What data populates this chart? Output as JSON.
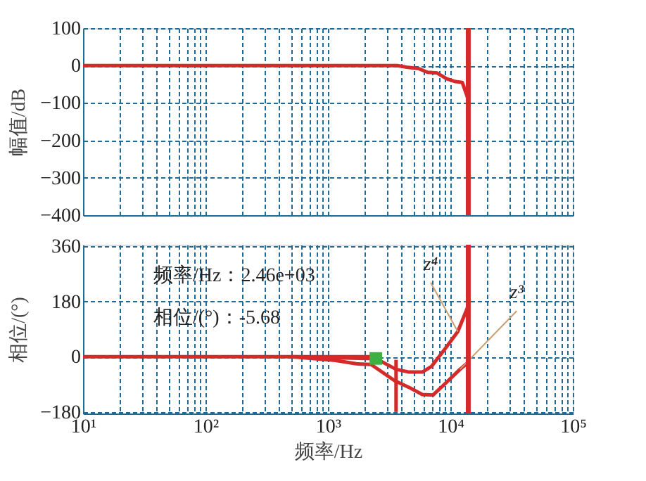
{
  "chart_data": [
    {
      "type": "line",
      "ylabel": "幅值/dB",
      "log": "x",
      "grid": true,
      "line_style": "solid",
      "tick_labels": "y",
      "xlim": [
        10,
        100000
      ],
      "ylim": [
        -400,
        100
      ],
      "yticks": [
        -400,
        -300,
        -200,
        -100,
        0,
        100
      ],
      "xticks": [
        10,
        20,
        30,
        40,
        50,
        60,
        70,
        80,
        90,
        100,
        200,
        300,
        400,
        500,
        600,
        700,
        800,
        900,
        1000,
        2000,
        3000,
        4000,
        5000,
        6000,
        7000,
        8000,
        9000,
        10000,
        20000,
        30000,
        40000,
        50000,
        60000,
        70000,
        80000,
        90000,
        100000
      ],
      "series": [
        {
          "color": "#d42a2a",
          "x": [
            10,
            3700,
            4500,
            5500,
            6500,
            7800,
            9300,
            11000,
            12500,
            13800,
            14000
          ],
          "values": [
            0,
            0,
            -5,
            -8,
            -18,
            -20,
            -35,
            -43,
            -45,
            -85,
            -100
          ]
        }
      ],
      "ref_lines": [
        {
          "axis": "x",
          "value": 14000,
          "color": "#d42a2a"
        }
      ]
    },
    {
      "type": "line",
      "xlabel": "频率/Hz",
      "ylabel": "相位/(°)",
      "log": "x",
      "grid": true,
      "line_style": "solid",
      "xlim": [
        10,
        100000
      ],
      "ylim": [
        -185,
        365
      ],
      "yticks": [
        -180,
        0,
        180,
        360
      ],
      "xticks": [
        {
          "value": 10,
          "label": "10¹"
        },
        {
          "value": 20,
          "label": null
        },
        {
          "value": 30,
          "label": null
        },
        {
          "value": 40,
          "label": null
        },
        {
          "value": 50,
          "label": null
        },
        {
          "value": 60,
          "label": null
        },
        {
          "value": 70,
          "label": null
        },
        {
          "value": 80,
          "label": null
        },
        {
          "value": 90,
          "label": null
        },
        {
          "value": 100,
          "label": "10²"
        },
        {
          "value": 200,
          "label": null
        },
        {
          "value": 300,
          "label": null
        },
        {
          "value": 400,
          "label": null
        },
        {
          "value": 500,
          "label": null
        },
        {
          "value": 600,
          "label": null
        },
        {
          "value": 700,
          "label": null
        },
        {
          "value": 800,
          "label": null
        },
        {
          "value": 900,
          "label": null
        },
        {
          "value": 1000,
          "label": "10³"
        },
        {
          "value": 2000,
          "label": null
        },
        {
          "value": 3000,
          "label": null
        },
        {
          "value": 4000,
          "label": null
        },
        {
          "value": 5000,
          "label": null
        },
        {
          "value": 6000,
          "label": null
        },
        {
          "value": 7000,
          "label": null
        },
        {
          "value": 8000,
          "label": null
        },
        {
          "value": 9000,
          "label": null
        },
        {
          "value": 10000,
          "label": "10⁴"
        },
        {
          "value": 20000,
          "label": null
        },
        {
          "value": 30000,
          "label": null
        },
        {
          "value": 40000,
          "label": null
        },
        {
          "value": 50000,
          "label": null
        },
        {
          "value": 60000,
          "label": null
        },
        {
          "value": 70000,
          "label": null
        },
        {
          "value": 80000,
          "label": null
        },
        {
          "value": 90000,
          "label": null
        },
        {
          "value": 100000,
          "label": "10⁵"
        }
      ],
      "series": [
        {
          "color": "#d42a2a",
          "x": [
            10,
            2460
          ],
          "values": [
            0,
            0
          ]
        },
        {
          "name": "z⁴",
          "color": "#d42a2a",
          "x": [
            500,
            1000,
            2460,
            3600,
            4600,
            5900,
            7000,
            9100,
            11500,
            13800,
            14000
          ],
          "values": [
            0,
            -3,
            -6,
            -41,
            -50,
            -50,
            -32,
            27,
            82,
            160,
            178
          ]
        },
        {
          "name": "z³",
          "color": "#d42a2a",
          "x": [
            500,
            1150,
            1700,
            2250,
            3500,
            4600,
            5900,
            7200,
            9100,
            12000,
            14000
          ],
          "values": [
            0,
            -12,
            -23,
            -25,
            -78,
            -100,
            -123,
            -125,
            -87,
            -41,
            -18
          ]
        },
        {
          "color": "#d42a2a",
          "x": [
            3600,
            3600
          ],
          "values": [
            -10,
            -180
          ]
        },
        {
          "type": "scatter",
          "marker": "square",
          "color": "#3cb043",
          "x": [
            2460
          ],
          "values": [
            -5.68
          ]
        }
      ],
      "ref_lines": [
        {
          "axis": "x",
          "value": 14000,
          "color": "#d42a2a"
        }
      ],
      "annotations": [
        "频率/Hz：2.46e+03",
        "相位/(°)：-5.68"
      ]
    }
  ]
}
